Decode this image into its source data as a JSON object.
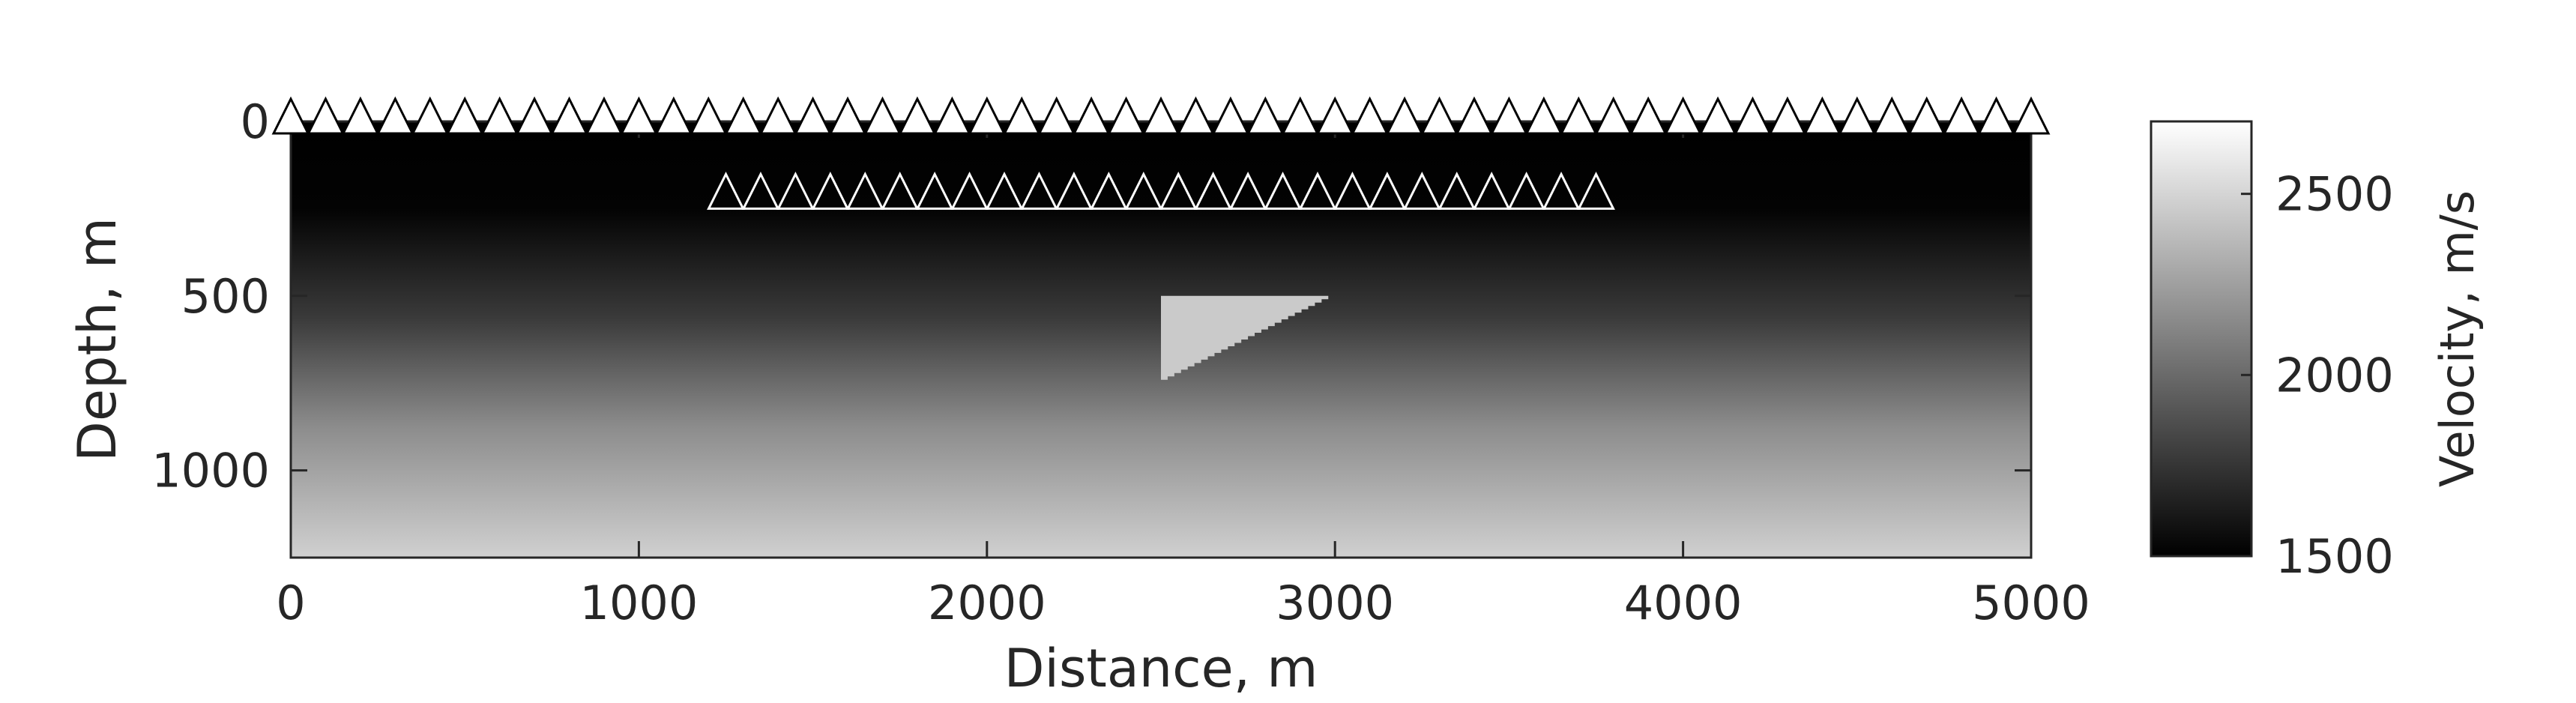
{
  "chart_data": {
    "type": "heatmap",
    "title": "",
    "xlabel": "Distance, m",
    "ylabel": "Depth, m",
    "xlim": [
      0,
      5000
    ],
    "ylim": [
      1250,
      0
    ],
    "x_ticks": [
      0,
      1000,
      2000,
      3000,
      4000,
      5000
    ],
    "x_tick_labels": [
      "0",
      "1000",
      "2000",
      "3000",
      "4000",
      "5000"
    ],
    "y_ticks": [
      0,
      500,
      1000
    ],
    "y_tick_labels": [
      "0",
      "500",
      "1000"
    ],
    "colorbar": {
      "label": "Velocity, m/s",
      "range": [
        1500,
        2700
      ],
      "ticks": [
        1500,
        2000,
        2500
      ],
      "tick_labels": [
        "1500",
        "2000",
        "2500"
      ],
      "colormap": "gray",
      "color_low": "#000000",
      "color_high": "#ffffff"
    },
    "background_velocity": {
      "top": 1500,
      "bottom": 2450,
      "gradient": "increases with depth below ~300 m"
    },
    "anomaly": {
      "shape": "triangle",
      "velocity": 2450,
      "vertices": [
        [
          2500,
          500
        ],
        [
          3000,
          500
        ],
        [
          2500,
          750
        ]
      ]
    },
    "sources": {
      "marker": "triangle",
      "depth": 0,
      "x_start": 0,
      "x_end": 5000,
      "spacing": 100
    },
    "receivers": {
      "marker": "triangle",
      "depth": 250,
      "x_start": 1250,
      "x_end": 3750,
      "spacing": 100
    }
  }
}
